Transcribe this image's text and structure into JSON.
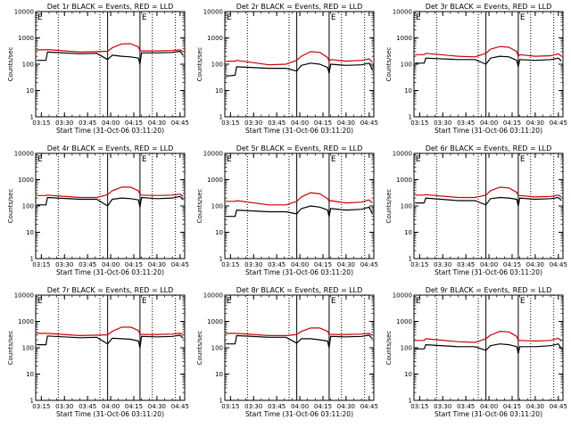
{
  "x_ticks": [
    "03:15",
    "03:30",
    "03:45",
    "04:00",
    "04:15",
    "04:30",
    "04:45"
  ],
  "y_ticks": [
    "1",
    "10",
    "100",
    "1000",
    "10000"
  ],
  "marker_labels": [
    "E",
    "E"
  ],
  "colors": {
    "events": "#000000",
    "lld": "#cc0000",
    "background": "#ffffff"
  },
  "chart_data": [
    {
      "type": "line",
      "title": "Det 1r BLACK = Events, RED = LLD",
      "xlabel": "Start Time (31-Oct-06 03:11:20)",
      "ylabel": "Counts/sec",
      "xlim": [
        "03:11:20",
        "04:48:00"
      ],
      "ylim": [
        1,
        10000
      ],
      "y_scale": "log",
      "vlines_solid": [
        "03:58:00",
        "04:19:00"
      ],
      "vlines_dotted": [
        "03:26:00",
        "03:53:00",
        "04:27:00",
        "04:42:00"
      ],
      "x": [
        "03:12",
        "03:18",
        "03:19",
        "03:40",
        "03:51",
        "03:58",
        "04:01",
        "04:07",
        "04:13",
        "04:18",
        "04:19",
        "04:20",
        "04:30",
        "04:40",
        "04:45",
        "04:47"
      ],
      "series": [
        {
          "name": "Events",
          "values": [
            140,
            140,
            290,
            250,
            260,
            150,
            220,
            200,
            190,
            170,
            100,
            270,
            270,
            280,
            310,
            220
          ]
        },
        {
          "name": "LLD",
          "values": [
            350,
            350,
            360,
            290,
            300,
            310,
            420,
            590,
            600,
            450,
            320,
            320,
            320,
            330,
            350,
            300
          ]
        }
      ]
    },
    {
      "type": "line",
      "title": "Det 2r BLACK = Events, RED = LLD",
      "xlabel": "Start Time (31-Oct-06 03:11:20)",
      "ylabel": "Counts/sec",
      "xlim": [
        "03:11:20",
        "04:48:00"
      ],
      "ylim": [
        1,
        10000
      ],
      "y_scale": "log",
      "vlines_solid": [
        "03:58:00",
        "04:19:00"
      ],
      "vlines_dotted": [
        "03:26:00",
        "03:53:00",
        "04:27:00",
        "04:42:00"
      ],
      "x": [
        "03:12",
        "03:18",
        "03:19",
        "03:40",
        "03:51",
        "03:58",
        "04:01",
        "04:07",
        "04:13",
        "04:18",
        "04:19",
        "04:20",
        "04:30",
        "04:40",
        "04:45",
        "04:47"
      ],
      "series": [
        {
          "name": "Events",
          "values": [
            35,
            38,
            80,
            70,
            70,
            55,
            90,
            110,
            100,
            75,
            45,
            100,
            90,
            95,
            110,
            60
          ]
        },
        {
          "name": "LLD",
          "values": [
            130,
            130,
            140,
            95,
            100,
            140,
            200,
            300,
            280,
            180,
            130,
            150,
            130,
            140,
            160,
            120
          ]
        }
      ]
    },
    {
      "type": "line",
      "title": "Det 3r BLACK = Events, RED = LLD",
      "xlabel": "Start Time (31-Oct-06 03:11:20)",
      "ylabel": "Counts/sec",
      "xlim": [
        "03:11:20",
        "04:48:00"
      ],
      "ylim": [
        1,
        10000
      ],
      "y_scale": "log",
      "vlines_solid": [
        "03:58:00",
        "04:19:00"
      ],
      "vlines_dotted": [
        "03:26:00",
        "03:53:00",
        "04:27:00",
        "04:42:00"
      ],
      "x": [
        "03:12",
        "03:18",
        "03:19",
        "03:40",
        "03:51",
        "03:58",
        "04:01",
        "04:07",
        "04:13",
        "04:18",
        "04:19",
        "04:20",
        "04:30",
        "04:40",
        "04:45",
        "04:47"
      ],
      "series": [
        {
          "name": "Events",
          "values": [
            110,
            110,
            170,
            150,
            150,
            100,
            170,
            200,
            190,
            140,
            80,
            150,
            140,
            150,
            170,
            130
          ]
        },
        {
          "name": "LLD",
          "values": [
            230,
            230,
            260,
            200,
            190,
            260,
            370,
            470,
            440,
            300,
            200,
            230,
            200,
            210,
            250,
            200
          ]
        }
      ]
    },
    {
      "type": "line",
      "title": "Det 4r BLACK = Events, RED = LLD",
      "xlabel": "Start Time (31-Oct-06 03:11:20)",
      "ylabel": "Counts/sec",
      "xlim": [
        "03:11:20",
        "04:48:00"
      ],
      "ylim": [
        1,
        10000
      ],
      "y_scale": "log",
      "vlines_solid": [
        "03:58:00",
        "04:19:00"
      ],
      "vlines_dotted": [
        "03:26:00",
        "03:53:00",
        "04:27:00",
        "04:42:00"
      ],
      "x": [
        "03:12",
        "03:18",
        "03:19",
        "03:40",
        "03:51",
        "03:58",
        "04:01",
        "04:07",
        "04:13",
        "04:18",
        "04:19",
        "04:20",
        "04:30",
        "04:40",
        "04:45",
        "04:47"
      ],
      "series": [
        {
          "name": "Events",
          "values": [
            110,
            110,
            210,
            180,
            180,
            100,
            180,
            200,
            190,
            170,
            90,
            210,
            190,
            200,
            230,
            170
          ]
        },
        {
          "name": "LLD",
          "values": [
            250,
            250,
            260,
            210,
            210,
            270,
            380,
            520,
            520,
            380,
            270,
            260,
            250,
            260,
            280,
            230
          ]
        }
      ]
    },
    {
      "type": "line",
      "title": "Det 5r BLACK = Events, RED = LLD",
      "xlabel": "Start Time (31-Oct-06 03:11:20)",
      "ylabel": "Counts/sec",
      "xlim": [
        "03:11:20",
        "04:48:00"
      ],
      "ylim": [
        1,
        10000
      ],
      "y_scale": "log",
      "vlines_solid": [
        "03:58:00",
        "04:19:00"
      ],
      "vlines_dotted": [
        "03:26:00",
        "03:53:00",
        "04:27:00",
        "04:42:00"
      ],
      "x": [
        "03:12",
        "03:18",
        "03:19",
        "03:40",
        "03:51",
        "03:58",
        "04:01",
        "04:07",
        "04:13",
        "04:18",
        "04:19",
        "04:20",
        "04:30",
        "04:40",
        "04:45",
        "04:47"
      ],
      "series": [
        {
          "name": "Events",
          "values": [
            40,
            40,
            70,
            60,
            60,
            50,
            80,
            100,
            90,
            70,
            40,
            80,
            70,
            75,
            90,
            50
          ]
        },
        {
          "name": "LLD",
          "values": [
            150,
            150,
            160,
            110,
            110,
            150,
            220,
            320,
            290,
            190,
            150,
            160,
            130,
            140,
            170,
            130
          ]
        }
      ]
    },
    {
      "type": "line",
      "title": "Det 6r BLACK = Events, RED = LLD",
      "xlabel": "Start Time (31-Oct-06 03:11:20)",
      "ylabel": "Counts/sec",
      "xlim": [
        "03:11:20",
        "04:48:00"
      ],
      "ylim": [
        1,
        10000
      ],
      "y_scale": "log",
      "vlines_solid": [
        "03:58:00",
        "04:19:00"
      ],
      "vlines_dotted": [
        "03:26:00",
        "03:53:00",
        "04:27:00",
        "04:42:00"
      ],
      "x": [
        "03:12",
        "03:18",
        "03:19",
        "03:40",
        "03:51",
        "03:58",
        "04:01",
        "04:07",
        "04:13",
        "04:18",
        "04:19",
        "04:20",
        "04:30",
        "04:40",
        "04:45",
        "04:47"
      ],
      "series": [
        {
          "name": "Events",
          "values": [
            130,
            130,
            200,
            160,
            160,
            110,
            190,
            210,
            200,
            180,
            100,
            200,
            180,
            190,
            210,
            160
          ]
        },
        {
          "name": "LLD",
          "values": [
            260,
            260,
            270,
            210,
            210,
            260,
            380,
            520,
            480,
            330,
            250,
            250,
            220,
            230,
            260,
            220
          ]
        }
      ]
    },
    {
      "type": "line",
      "title": "Det 7r BLACK = Events, RED = LLD",
      "xlabel": "Start Time (31-Oct-06 03:11:20)",
      "ylabel": "Counts/sec",
      "xlim": [
        "03:11:20",
        "04:48:00"
      ],
      "ylim": [
        1,
        10000
      ],
      "y_scale": "log",
      "vlines_solid": [
        "03:58:00",
        "04:19:00"
      ],
      "vlines_dotted": [
        "03:26:00",
        "03:53:00",
        "04:27:00",
        "04:42:00"
      ],
      "x": [
        "03:12",
        "03:18",
        "03:19",
        "03:40",
        "03:51",
        "03:58",
        "04:01",
        "04:07",
        "04:13",
        "04:18",
        "04:19",
        "04:20",
        "04:30",
        "04:40",
        "04:45",
        "04:47"
      ],
      "series": [
        {
          "name": "Events",
          "values": [
            130,
            130,
            280,
            240,
            250,
            140,
            230,
            220,
            210,
            180,
            100,
            270,
            260,
            270,
            300,
            230
          ]
        },
        {
          "name": "LLD",
          "values": [
            350,
            350,
            350,
            290,
            300,
            310,
            420,
            600,
            610,
            450,
            320,
            320,
            320,
            330,
            360,
            300
          ]
        }
      ]
    },
    {
      "type": "line",
      "title": "Det 8r BLACK = Events, RED = LLD",
      "xlabel": "Start Time (31-Oct-06 03:11:20)",
      "ylabel": "Counts/sec",
      "xlim": [
        "03:11:20",
        "04:48:00"
      ],
      "ylim": [
        1,
        10000
      ],
      "y_scale": "log",
      "vlines_solid": [
        "03:58:00",
        "04:19:00"
      ],
      "vlines_dotted": [
        "03:26:00",
        "03:53:00",
        "04:27:00",
        "04:42:00"
      ],
      "x": [
        "03:12",
        "03:18",
        "03:19",
        "03:40",
        "03:51",
        "03:58",
        "04:01",
        "04:07",
        "04:13",
        "04:18",
        "04:19",
        "04:20",
        "04:30",
        "04:40",
        "04:45",
        "04:47"
      ],
      "series": [
        {
          "name": "Events",
          "values": [
            140,
            140,
            290,
            250,
            250,
            150,
            220,
            220,
            200,
            180,
            100,
            270,
            260,
            270,
            300,
            220
          ]
        },
        {
          "name": "LLD",
          "values": [
            350,
            350,
            350,
            290,
            290,
            320,
            420,
            560,
            560,
            420,
            320,
            320,
            320,
            330,
            350,
            300
          ]
        }
      ]
    },
    {
      "type": "line",
      "title": "Det 9r BLACK = Events, RED = LLD",
      "xlabel": "Start Time (31-Oct-06 03:11:20)",
      "ylabel": "Counts/sec",
      "xlim": [
        "03:11:20",
        "04:48:00"
      ],
      "ylim": [
        1,
        10000
      ],
      "y_scale": "log",
      "vlines_solid": [
        "03:58:00",
        "04:19:00"
      ],
      "vlines_dotted": [
        "03:26:00",
        "03:53:00",
        "04:27:00",
        "04:42:00"
      ],
      "x": [
        "03:12",
        "03:18",
        "03:19",
        "03:40",
        "03:51",
        "03:58",
        "04:01",
        "04:07",
        "04:13",
        "04:18",
        "04:19",
        "04:20",
        "04:30",
        "04:40",
        "04:45",
        "04:47"
      ],
      "series": [
        {
          "name": "Events",
          "values": [
            90,
            90,
            130,
            110,
            110,
            80,
            120,
            140,
            130,
            110,
            60,
            110,
            110,
            120,
            140,
            90
          ]
        },
        {
          "name": "LLD",
          "values": [
            190,
            190,
            220,
            170,
            160,
            220,
            300,
            420,
            400,
            270,
            190,
            190,
            180,
            190,
            230,
            180
          ]
        }
      ]
    }
  ]
}
